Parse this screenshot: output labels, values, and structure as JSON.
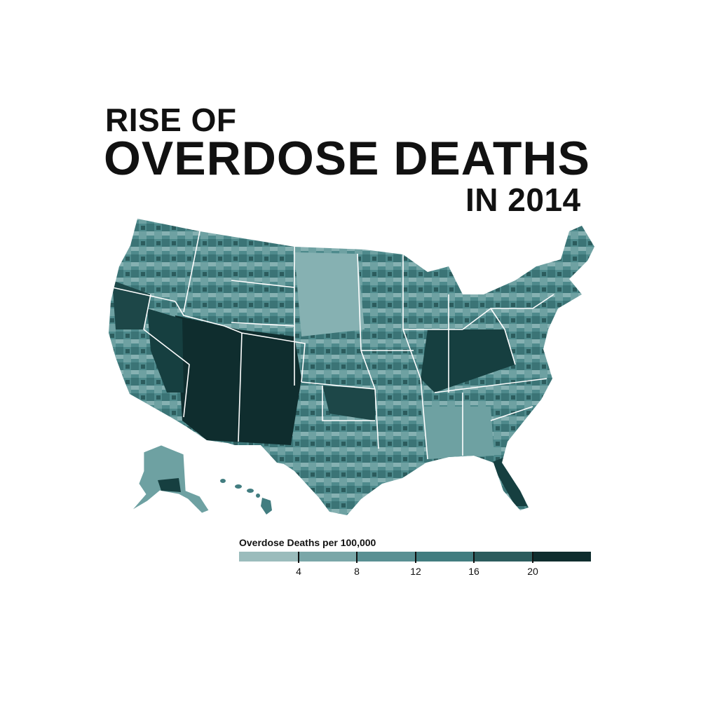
{
  "title": {
    "line1": "RISE OF",
    "line2": "OVERDOSE DEATHS",
    "line3": "IN 2014"
  },
  "legend": {
    "title": "Overdose Deaths per 100,000",
    "tick_labels": [
      "4",
      "8",
      "12",
      "16",
      "20"
    ],
    "colors": [
      "#9bbcbc",
      "#7aa7a8",
      "#5a9093",
      "#427d80",
      "#2c5c5d",
      "#0f2d2e"
    ]
  },
  "map": {
    "border_color": "#ffffff",
    "regions": [
      "Contiguous United States",
      "Alaska",
      "Hawaii"
    ]
  }
}
